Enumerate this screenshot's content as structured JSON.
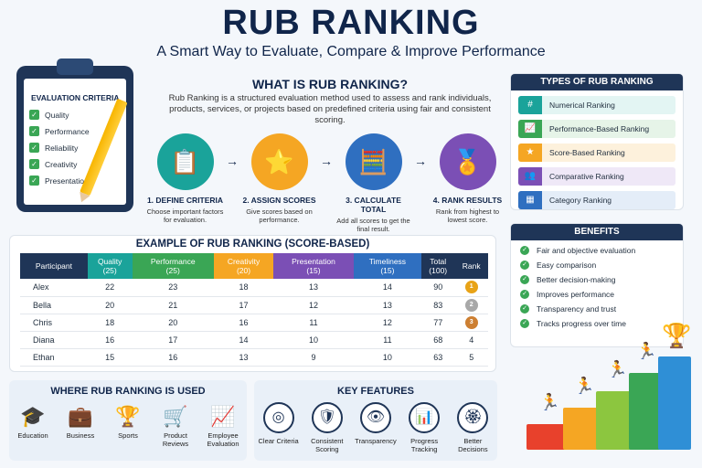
{
  "header": {
    "title": "RUB RANKING",
    "subtitle": "A Smart Way to Evaluate, Compare & Improve Performance"
  },
  "criteria": {
    "title": "EVALUATION CRITERIA",
    "items": [
      "Quality",
      "Performance",
      "Reliability",
      "Creativity",
      "Presentation"
    ]
  },
  "what_is": {
    "title": "WHAT IS RUB RANKING?",
    "description": "Rub Ranking is a structured evaluation method used to assess and rank individuals, products, services, or projects based on predefined criteria using fair and consistent scoring.",
    "steps": [
      {
        "title": "1. DEFINE CRITERIA",
        "desc": "Choose important factors for evaluation.",
        "color": "#1aa39a",
        "icon": "clipboard-icon"
      },
      {
        "title": "2. ASSIGN SCORES",
        "desc": "Give scores based on performance.",
        "color": "#f5a623",
        "icon": "star-list-icon"
      },
      {
        "title": "3. CALCULATE TOTAL",
        "desc": "Add all scores to get the final result.",
        "color": "#2f6fc0",
        "icon": "calculator-icon"
      },
      {
        "title": "4. RANK RESULTS",
        "desc": "Rank from highest to lowest score.",
        "color": "#7b4fb5",
        "icon": "podium-icon"
      }
    ]
  },
  "table": {
    "title": "EXAMPLE OF RUB RANKING (SCORE-BASED)",
    "columns": [
      {
        "label": "Participant",
        "sub": "",
        "color": "#1f3557"
      },
      {
        "label": "Quality",
        "sub": "(25)",
        "color": "#1aa39a"
      },
      {
        "label": "Performance",
        "sub": "(25)",
        "color": "#3aa655"
      },
      {
        "label": "Creativity",
        "sub": "(20)",
        "color": "#f5a623"
      },
      {
        "label": "Presentation",
        "sub": "(15)",
        "color": "#7b4fb5"
      },
      {
        "label": "Timeliness",
        "sub": "(15)",
        "color": "#2f6fc0"
      },
      {
        "label": "Total",
        "sub": "(100)",
        "color": "#1f3557"
      },
      {
        "label": "Rank",
        "sub": "",
        "color": "#1f3557"
      }
    ],
    "rows": [
      {
        "name": "Alex",
        "scores": [
          "22",
          "23",
          "18",
          "13",
          "14"
        ],
        "total": "90",
        "rank": "1",
        "medal": "#e8a317"
      },
      {
        "name": "Bella",
        "scores": [
          "20",
          "21",
          "17",
          "12",
          "13"
        ],
        "total": "83",
        "rank": "2",
        "medal": "#a8a8a8"
      },
      {
        "name": "Chris",
        "scores": [
          "18",
          "20",
          "16",
          "11",
          "12"
        ],
        "total": "77",
        "rank": "3",
        "medal": "#cd7f32"
      },
      {
        "name": "Diana",
        "scores": [
          "16",
          "17",
          "14",
          "10",
          "11"
        ],
        "total": "68",
        "rank": "4",
        "medal": ""
      },
      {
        "name": "Ethan",
        "scores": [
          "15",
          "16",
          "13",
          "9",
          "10"
        ],
        "total": "63",
        "rank": "5",
        "medal": ""
      }
    ]
  },
  "types": {
    "title": "TYPES OF RUB RANKING",
    "items": [
      {
        "label": "Numerical Ranking",
        "color": "#1aa39a",
        "bg": "#e3f5f3",
        "icon": "numbers-icon"
      },
      {
        "label": "Performance-Based Ranking",
        "color": "#3aa655",
        "bg": "#e6f4e8",
        "icon": "growth-chart-icon"
      },
      {
        "label": "Score-Based Ranking",
        "color": "#f5a623",
        "bg": "#fdf1dc",
        "icon": "star-icon"
      },
      {
        "label": "Comparative Ranking",
        "color": "#7b4fb5",
        "bg": "#efe8f7",
        "icon": "people-icon"
      },
      {
        "label": "Category Ranking",
        "color": "#2f6fc0",
        "bg": "#e4edf8",
        "icon": "grid-icon"
      }
    ]
  },
  "benefits": {
    "title": "BENEFITS",
    "items": [
      "Fair and objective evaluation",
      "Easy comparison",
      "Better decision-making",
      "Improves performance",
      "Transparency and trust",
      "Tracks progress over time"
    ]
  },
  "where": {
    "title": "WHERE RUB RANKING IS USED",
    "items": [
      {
        "label": "Education",
        "icon": "graduation-cap-icon"
      },
      {
        "label": "Business",
        "icon": "briefcase-icon"
      },
      {
        "label": "Sports",
        "icon": "trophy-icon"
      },
      {
        "label": "Product Reviews",
        "icon": "cart-icon"
      },
      {
        "label": "Employee Evaluation",
        "icon": "employee-growth-icon"
      }
    ]
  },
  "features": {
    "title": "KEY FEATURES",
    "items": [
      {
        "label": "Clear Criteria",
        "icon": "target-icon"
      },
      {
        "label": "Consistent Scoring",
        "icon": "shield-check-icon"
      },
      {
        "label": "Transparency",
        "icon": "eye-icon"
      },
      {
        "label": "Progress Tracking",
        "icon": "bar-chart-icon"
      },
      {
        "label": "Better Decisions",
        "icon": "award-icon"
      }
    ]
  }
}
